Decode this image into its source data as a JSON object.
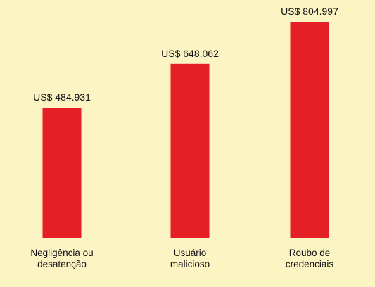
{
  "chart_data": {
    "type": "bar",
    "categories": [
      [
        "Negligência ou",
        "desatenção"
      ],
      [
        "Usuário",
        "malicioso"
      ],
      [
        "Roubo de",
        "credenciais"
      ]
    ],
    "values": [
      484931,
      648062,
      804997
    ],
    "value_labels": [
      "US$ 484.931",
      "US$ 648.062",
      "US$ 804.997"
    ],
    "title": "",
    "xlabel": "",
    "ylabel": "",
    "ylim": [
      0,
      860000
    ],
    "grid": false,
    "legend": "none",
    "bar_color": "#e41f26",
    "background_color": "#fdf4c4"
  }
}
